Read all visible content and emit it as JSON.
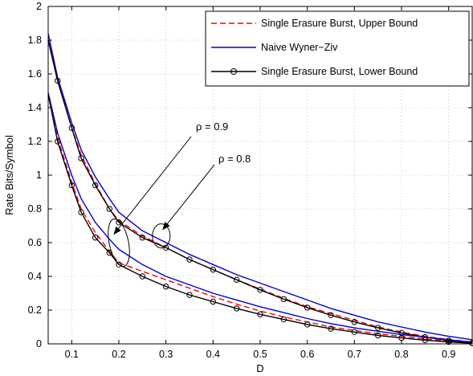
{
  "chart_data": {
    "type": "line",
    "xlabel": "D",
    "ylabel": "Rate Bits/Symbol",
    "xlim": [
      0.05,
      0.95
    ],
    "ylim": [
      0,
      2
    ],
    "xticks": [
      0.1,
      0.2,
      0.3,
      0.4,
      0.5,
      0.6,
      0.7,
      0.8,
      0.9
    ],
    "xtick_labels": [
      "0.1",
      "0.2",
      "0.3",
      "0.4",
      "0.5",
      "0.6",
      "0.7",
      "0.8",
      "0.9"
    ],
    "yticks": [
      0,
      0.2,
      0.4,
      0.6,
      0.8,
      1,
      1.2,
      1.4,
      1.6,
      1.8,
      2
    ],
    "ytick_labels": [
      "0",
      "0.2",
      "0.4",
      "0.6",
      "0.8",
      "1",
      "1.2",
      "1.4",
      "1.6",
      "1.8",
      "2"
    ],
    "grid": true,
    "legend_position": "top-right",
    "legend": [
      {
        "label": "Single Erasure Burst, Upper Bound",
        "color": "#ff0000",
        "style": "dashed"
      },
      {
        "label": "Naive Wyner−Ziv",
        "color": "#0000cc",
        "style": "solid"
      },
      {
        "label": "Single Erasure Burst, Lower Bound",
        "color": "#000000",
        "style": "solid-circle-markers"
      }
    ],
    "x": [
      0.05,
      0.07,
      0.1,
      0.12,
      0.15,
      0.18,
      0.2,
      0.25,
      0.3,
      0.35,
      0.4,
      0.45,
      0.5,
      0.55,
      0.6,
      0.65,
      0.7,
      0.75,
      0.8,
      0.85,
      0.9,
      0.95
    ],
    "series": [
      {
        "group": "rho=0.9",
        "kind": "upper",
        "values": [
          1.8,
          1.56,
          1.28,
          1.12,
          0.95,
          0.8,
          0.73,
          0.64,
          0.57,
          0.5,
          0.44,
          0.38,
          0.325,
          0.27,
          0.22,
          0.18,
          0.14,
          0.1,
          0.07,
          0.045,
          0.025,
          0.012
        ]
      },
      {
        "group": "rho=0.9",
        "kind": "wz",
        "values": [
          1.84,
          1.58,
          1.31,
          1.15,
          0.99,
          0.86,
          0.78,
          0.67,
          0.6,
          0.53,
          0.47,
          0.41,
          0.36,
          0.31,
          0.26,
          0.21,
          0.17,
          0.13,
          0.1,
          0.07,
          0.045,
          0.025
        ]
      },
      {
        "group": "rho=0.9",
        "kind": "lower",
        "values": [
          1.8,
          1.56,
          1.28,
          1.1,
          0.94,
          0.8,
          0.72,
          0.63,
          0.57,
          0.5,
          0.44,
          0.38,
          0.32,
          0.265,
          0.215,
          0.17,
          0.13,
          0.095,
          0.065,
          0.04,
          0.02,
          0.005
        ]
      },
      {
        "group": "rho=0.8",
        "kind": "upper",
        "values": [
          1.48,
          1.22,
          0.96,
          0.8,
          0.66,
          0.55,
          0.48,
          0.43,
          0.38,
          0.33,
          0.28,
          0.235,
          0.195,
          0.16,
          0.13,
          0.1,
          0.08,
          0.06,
          0.045,
          0.03,
          0.015,
          0.005
        ]
      },
      {
        "group": "rho=0.8",
        "kind": "wz",
        "values": [
          1.49,
          1.25,
          1.0,
          0.86,
          0.72,
          0.62,
          0.56,
          0.47,
          0.4,
          0.35,
          0.3,
          0.26,
          0.22,
          0.185,
          0.15,
          0.12,
          0.095,
          0.075,
          0.055,
          0.04,
          0.025,
          0.01
        ]
      },
      {
        "group": "rho=0.8",
        "kind": "lower",
        "values": [
          1.48,
          1.2,
          0.94,
          0.78,
          0.63,
          0.54,
          0.47,
          0.4,
          0.34,
          0.29,
          0.25,
          0.21,
          0.175,
          0.145,
          0.115,
          0.09,
          0.07,
          0.05,
          0.035,
          0.022,
          0.012,
          0.004
        ]
      }
    ],
    "annotations": [
      {
        "text": "ρ = 0.9",
        "target": [
          0.2,
          0.66
        ]
      },
      {
        "text": "ρ = 0.8",
        "target": [
          0.29,
          0.64
        ]
      }
    ]
  }
}
